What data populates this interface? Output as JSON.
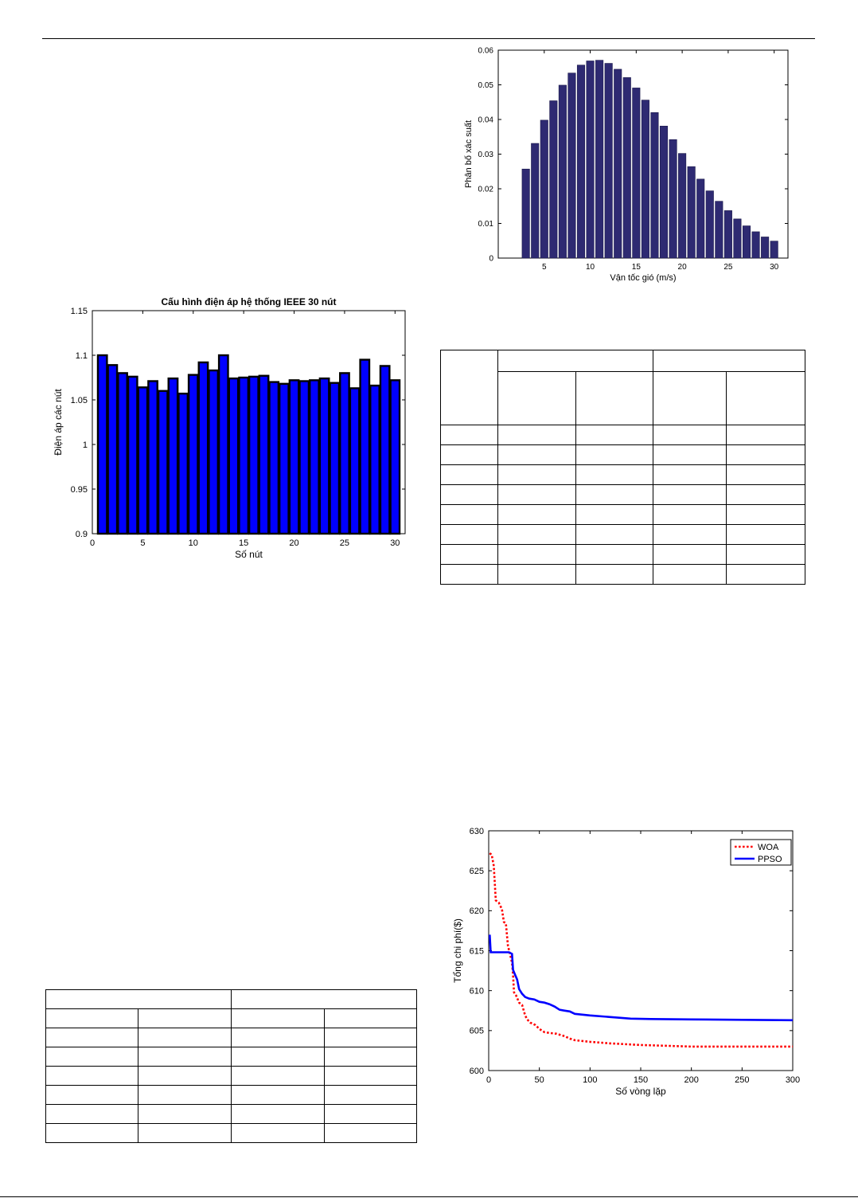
{
  "chart_data": [
    {
      "id": "wind",
      "type": "bar",
      "title": "",
      "xlabel": "Vận tốc gió (m/s)",
      "ylabel": "Phân bố xác suất",
      "xlim": [
        0,
        31.5
      ],
      "ylim": [
        0,
        0.06
      ],
      "x_ticks": [
        5,
        10,
        15,
        20,
        25,
        30
      ],
      "y_ticks": [
        0,
        0.01,
        0.02,
        0.03,
        0.04,
        0.05,
        0.06
      ],
      "x": [
        3,
        4,
        5,
        6,
        7,
        8,
        9,
        10,
        11,
        12,
        13,
        14,
        15,
        16,
        17,
        18,
        19,
        20,
        21,
        22,
        23,
        24,
        25,
        26,
        27,
        28,
        29,
        30
      ],
      "values": [
        0.0257,
        0.0331,
        0.0398,
        0.0454,
        0.0499,
        0.0534,
        0.0557,
        0.0569,
        0.0571,
        0.0562,
        0.0545,
        0.0521,
        0.0491,
        0.0456,
        0.042,
        0.0381,
        0.0342,
        0.0302,
        0.0264,
        0.0228,
        0.0194,
        0.0164,
        0.0137,
        0.0113,
        0.0093,
        0.0076,
        0.0061,
        0.0049
      ],
      "bar_color": "#2e2a72",
      "grid": false
    },
    {
      "id": "voltage",
      "type": "bar",
      "title": "Cấu hình điện áp hệ thống IEEE 30 nút",
      "xlabel": "Số nút",
      "ylabel": "Điện áp các nút",
      "xlim": [
        0,
        31
      ],
      "ylim": [
        0.9,
        1.15
      ],
      "x_ticks": [
        0,
        5,
        10,
        15,
        20,
        25,
        30
      ],
      "y_ticks": [
        0.9,
        0.95,
        1,
        1.05,
        1.1,
        1.15
      ],
      "x": [
        1,
        2,
        3,
        4,
        5,
        6,
        7,
        8,
        9,
        10,
        11,
        12,
        13,
        14,
        15,
        16,
        17,
        18,
        19,
        20,
        21,
        22,
        23,
        24,
        25,
        26,
        27,
        28,
        29,
        30
      ],
      "values": [
        1.1,
        1.089,
        1.08,
        1.076,
        1.064,
        1.071,
        1.06,
        1.074,
        1.057,
        1.078,
        1.092,
        1.083,
        1.1,
        1.074,
        1.075,
        1.076,
        1.077,
        1.07,
        1.068,
        1.072,
        1.071,
        1.072,
        1.074,
        1.069,
        1.08,
        1.063,
        1.095,
        1.066,
        1.088,
        1.072
      ],
      "bar_color": "#0000ff",
      "grid": false
    },
    {
      "id": "convergence",
      "type": "line",
      "title": "",
      "xlabel": "Số vòng lặp",
      "ylabel": "Tổng chi phí($)",
      "xlim": [
        0,
        300
      ],
      "ylim": [
        600,
        630
      ],
      "x_ticks": [
        0,
        50,
        100,
        150,
        200,
        250,
        300
      ],
      "y_ticks": [
        600,
        605,
        610,
        615,
        620,
        625,
        630
      ],
      "legend_position": "top-right",
      "series": [
        {
          "name": "WOA",
          "color": "#ff0000",
          "style": "dotted",
          "points": [
            [
              1,
              627.2
            ],
            [
              3,
              627.0
            ],
            [
              5,
              625.6
            ],
            [
              7,
              621.3
            ],
            [
              10,
              621.0
            ],
            [
              13,
              620.2
            ],
            [
              15,
              618.6
            ],
            [
              17,
              618.4
            ],
            [
              19,
              615.6
            ],
            [
              21,
              614.6
            ],
            [
              23,
              613.5
            ],
            [
              24,
              612.0
            ],
            [
              25,
              609.8
            ],
            [
              27,
              609.4
            ],
            [
              30,
              608.5
            ],
            [
              33,
              608.2
            ],
            [
              36,
              606.9
            ],
            [
              38,
              606.4
            ],
            [
              41,
              606.0
            ],
            [
              46,
              605.7
            ],
            [
              50,
              605.2
            ],
            [
              55,
              604.8
            ],
            [
              60,
              604.7
            ],
            [
              67,
              604.6
            ],
            [
              75,
              604.3
            ],
            [
              80,
              604.0
            ],
            [
              85,
              603.8
            ],
            [
              100,
              603.6
            ],
            [
              120,
              603.4
            ],
            [
              150,
              603.2
            ],
            [
              200,
              603.0
            ],
            [
              250,
              603.0
            ],
            [
              300,
              603.0
            ]
          ]
        },
        {
          "name": "PPSO",
          "color": "#0000ff",
          "style": "solid",
          "points": [
            [
              1,
              617.0
            ],
            [
              2,
              614.8
            ],
            [
              5,
              614.8
            ],
            [
              20,
              614.8
            ],
            [
              23,
              614.6
            ],
            [
              24,
              612.6
            ],
            [
              26,
              612.0
            ],
            [
              28,
              611.4
            ],
            [
              30,
              610.2
            ],
            [
              33,
              609.6
            ],
            [
              36,
              609.2
            ],
            [
              40,
              609.0
            ],
            [
              45,
              608.9
            ],
            [
              50,
              608.6
            ],
            [
              55,
              608.5
            ],
            [
              60,
              608.3
            ],
            [
              65,
              608.0
            ],
            [
              70,
              607.6
            ],
            [
              75,
              607.5
            ],
            [
              80,
              607.4
            ],
            [
              85,
              607.1
            ],
            [
              100,
              606.9
            ],
            [
              120,
              606.7
            ],
            [
              140,
              606.5
            ],
            [
              160,
              606.45
            ],
            [
              200,
              606.4
            ],
            [
              250,
              606.35
            ],
            [
              300,
              606.3
            ]
          ]
        }
      ]
    }
  ],
  "tables": {
    "right": {
      "col_widths": [
        71,
        99,
        98,
        92,
        100
      ],
      "rows": [
        [
          "",
          "",
          "",
          "",
          ""
        ],
        [
          "",
          "",
          "",
          "",
          ""
        ],
        [
          "",
          "",
          "",
          "",
          ""
        ],
        [
          "",
          "",
          "",
          "",
          ""
        ],
        [
          "",
          "",
          "",
          "",
          ""
        ],
        [
          "",
          "",
          "",
          "",
          ""
        ],
        [
          "",
          "",
          "",
          "",
          ""
        ],
        [
          "",
          "",
          "",
          "",
          ""
        ],
        [
          "",
          "",
          "",
          "",
          ""
        ],
        [
          "",
          "",
          "",
          "",
          ""
        ]
      ]
    },
    "left": {
      "rows": [
        [
          "",
          ""
        ],
        [
          "",
          "",
          "",
          ""
        ],
        [
          "",
          "",
          "",
          ""
        ],
        [
          "",
          "",
          "",
          ""
        ],
        [
          "",
          "",
          "",
          ""
        ],
        [
          "",
          "",
          "",
          ""
        ],
        [
          "",
          "",
          "",
          ""
        ],
        [
          "",
          "",
          "",
          ""
        ]
      ]
    }
  }
}
